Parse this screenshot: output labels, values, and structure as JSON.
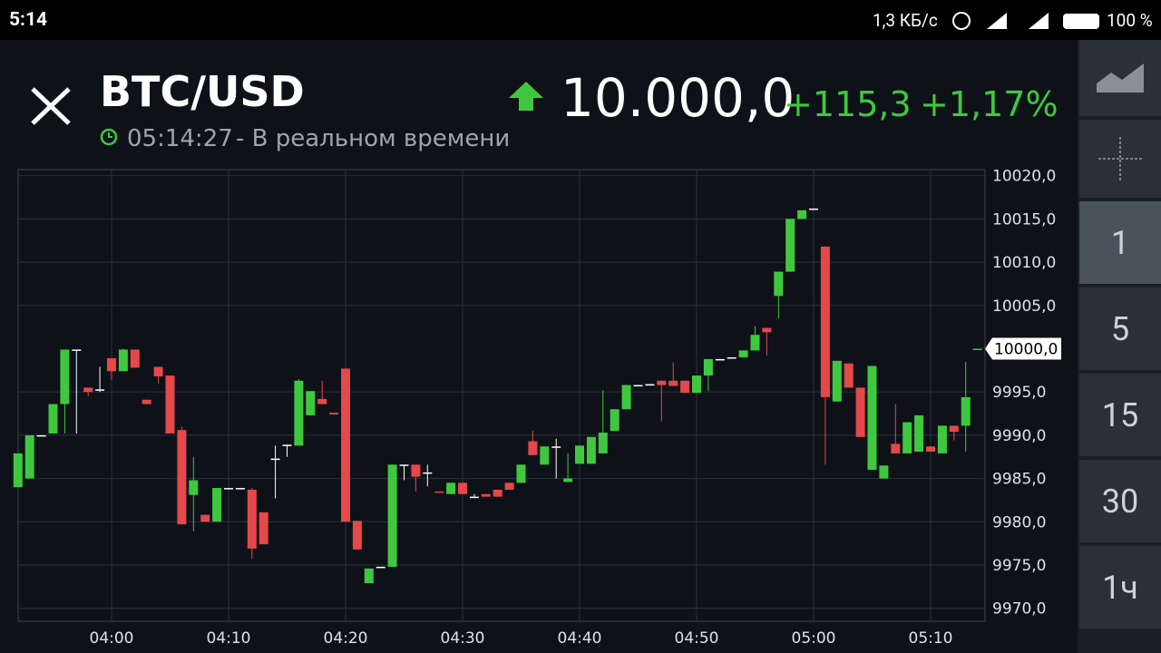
{
  "status_bar": {
    "time": "5:14",
    "network_speed": "1,3 КБ/с",
    "battery": "100 %"
  },
  "header": {
    "symbol": "BTC/USD",
    "time": "05:14:27",
    "mode": "- В реальном времени",
    "price": "10.000,0",
    "change": "+115,3",
    "change_percent": "+1,17%"
  },
  "timeframes": [
    "1",
    "5",
    "15",
    "30",
    "1ч"
  ],
  "chart_data": {
    "type": "candlestick",
    "categories": [
      null,
      null,
      null,
      null,
      null,
      null,
      null,
      null,
      "04:00",
      null,
      null,
      null,
      null,
      null,
      null,
      null,
      null,
      null,
      "04:10",
      null,
      null,
      null,
      null,
      null,
      null,
      null,
      null,
      null,
      "04:20",
      null,
      null,
      null,
      null,
      null,
      null,
      null,
      null,
      null,
      "04:30",
      null,
      null,
      null,
      null,
      null,
      null,
      null,
      null,
      null,
      "04:40",
      null,
      null,
      null,
      null,
      null,
      null,
      null,
      null,
      null,
      "04:50",
      null,
      null,
      null,
      null,
      null,
      null,
      null,
      null,
      null,
      "05:00",
      null,
      null,
      null,
      null,
      null,
      null,
      null,
      null,
      null,
      "05:10",
      null,
      null,
      null,
      null
    ],
    "open": [
      9984.0,
      9985.0,
      9990.0,
      9990.2,
      9993.6,
      9999.9,
      9995.5,
      9995.3,
      9998.9,
      9997.4,
      9999.9,
      9994.1,
      9997.9,
      9996.9,
      9990.6,
      9983.1,
      9980.8,
      9980.0,
      9983.9,
      9983.9,
      9983.7,
      9981.1,
      9987.3,
      9988.9,
      9988.8,
      9992.3,
      9994.2,
      9992.6,
      9997.7,
      9980.1,
      9972.9,
      9974.8,
      9974.8,
      9986.6,
      9986.6,
      9985.7,
      9983.5,
      9983.2,
      9984.5,
      9982.9,
      9983.2,
      9983.7,
      9984.5,
      9984.5,
      9989.3,
      9986.6,
      9988.7,
      9984.6,
      9986.7,
      9986.7,
      9987.9,
      9990.5,
      9993.0,
      9995.8,
      9995.9,
      9996.3,
      9996.3,
      9996.3,
      9994.9,
      9996.9,
      9998.8,
      9999.0,
      9999.0,
      9999.8,
      10002.4,
      10006.1,
      10008.9,
      10015.0,
      10016.2,
      10011.8,
      9993.9,
      9998.3,
      9995.5,
      9986.0,
      9985.0,
      9989.0,
      9987.9,
      9988.1,
      9988.7,
      9987.9,
      9991.1,
      9991.1,
      9999.9
    ],
    "high": [
      9987.9,
      9990.0,
      9990.0,
      9993.6,
      9999.9,
      9999.9,
      9995.5,
      9997.9,
      9998.9,
      10000.0,
      9999.9,
      9994.1,
      9997.9,
      9996.9,
      9991.0,
      9987.5,
      9980.8,
      9983.9,
      9983.9,
      9983.9,
      9983.9,
      9981.1,
      9988.8,
      9988.9,
      9996.5,
      9995.1,
      9996.3,
      9992.6,
      9997.7,
      9980.1,
      9974.6,
      9974.8,
      9986.6,
      9986.6,
      9986.6,
      9986.6,
      9983.5,
      9984.5,
      9984.5,
      9983.2,
      9983.2,
      9983.7,
      9984.5,
      9986.6,
      9990.5,
      9988.7,
      9989.6,
      9987.9,
      9988.8,
      9989.8,
      9995.2,
      9993.0,
      9995.8,
      9995.8,
      9995.9,
      9996.3,
      9998.4,
      9996.3,
      9996.9,
      9998.8,
      9998.8,
      9999.0,
      9999.8,
      10002.6,
      10002.4,
      10008.9,
      10015.0,
      10016.0,
      10016.2,
      10011.8,
      9998.6,
      9998.3,
      9995.5,
      9998.0,
      9986.5,
      9993.6,
      9991.5,
      9992.3,
      9988.7,
      9991.1,
      9991.1,
      9998.5,
      10000.0
    ],
    "low": [
      9984.0,
      9985.0,
      9990.0,
      9990.2,
      9990.2,
      9990.2,
      9994.5,
      9995.0,
      9996.4,
      9997.4,
      9997.8,
      9993.6,
      9996.0,
      9990.2,
      9979.7,
      9978.9,
      9980.0,
      9980.0,
      9983.9,
      9983.9,
      9975.7,
      9977.4,
      9982.7,
      9987.5,
      9988.8,
      9992.3,
      9993.6,
      9992.4,
      9980.0,
      9976.8,
      9972.9,
      9974.8,
      9974.8,
      9984.8,
      9983.5,
      9984.1,
      9983.4,
      9983.2,
      9983.2,
      9982.9,
      9982.9,
      9982.9,
      9983.7,
      9984.5,
      9987.7,
      9986.6,
      9985.0,
      9984.6,
      9986.7,
      9986.7,
      9987.9,
      9990.5,
      9993.0,
      9995.8,
      9995.9,
      9991.6,
      9995.7,
      9994.9,
      9994.9,
      9995.1,
      9998.8,
      9999.0,
      9999.0,
      9999.8,
      9999.2,
      10003.5,
      10008.9,
      10015.0,
      10016.2,
      9986.6,
      9993.9,
      9995.5,
      9989.8,
      9986.0,
      9985.0,
      9987.9,
      9987.9,
      9988.1,
      9988.1,
      9987.9,
      9989.4,
      9988.1,
      9999.9
    ],
    "close": [
      9987.9,
      9990.0,
      9990.0,
      9993.6,
      9999.9,
      9999.9,
      9995.0,
      9995.3,
      9997.4,
      9999.9,
      9997.8,
      9993.6,
      9996.8,
      9990.2,
      9979.7,
      9984.8,
      9980.0,
      9983.9,
      9983.9,
      9983.9,
      9976.9,
      9977.4,
      9987.3,
      9988.9,
      9996.3,
      9995.1,
      9993.6,
      9992.4,
      9980.0,
      9976.8,
      9974.6,
      9974.8,
      9986.6,
      9986.6,
      9985.2,
      9985.7,
      9983.4,
      9984.5,
      9983.2,
      9982.9,
      9982.9,
      9982.9,
      9983.7,
      9986.6,
      9987.7,
      9988.7,
      9988.7,
      9985.0,
      9988.8,
      9989.8,
      9990.3,
      9993.0,
      9995.8,
      9995.8,
      9995.9,
      9995.8,
      9995.7,
      9994.9,
      9996.9,
      9998.8,
      9998.8,
      9999.0,
      9999.8,
      10001.6,
      10001.9,
      10008.9,
      10015.0,
      10016.0,
      10016.2,
      9994.4,
      9998.6,
      9995.5,
      9989.8,
      9998.0,
      9986.5,
      9987.9,
      9991.5,
      9992.3,
      9988.1,
      9991.1,
      9990.4,
      9994.4,
      10000.0
    ],
    "up_color": "#3fc83f",
    "down_color": "#e54848",
    "flat_color": "#ffffff",
    "ylim": [
      9968.5,
      10020.7
    ],
    "yticks": [
      {
        "value": 9970,
        "label": "9970,0"
      },
      {
        "value": 9975,
        "label": "9975,0"
      },
      {
        "value": 9980,
        "label": "9980,0"
      },
      {
        "value": 9985,
        "label": "9985,0"
      },
      {
        "value": 9990,
        "label": "9990,0"
      },
      {
        "value": 9995,
        "label": "9995,0"
      },
      {
        "value": 10005,
        "label": "10005,0"
      },
      {
        "value": 10010,
        "label": "10010,0"
      },
      {
        "value": 10015,
        "label": "10015,0"
      },
      {
        "value": 10020,
        "label": "10020,0"
      }
    ],
    "current_price": {
      "value": 10000.0,
      "label": "10000,0"
    },
    "grid": true
  }
}
